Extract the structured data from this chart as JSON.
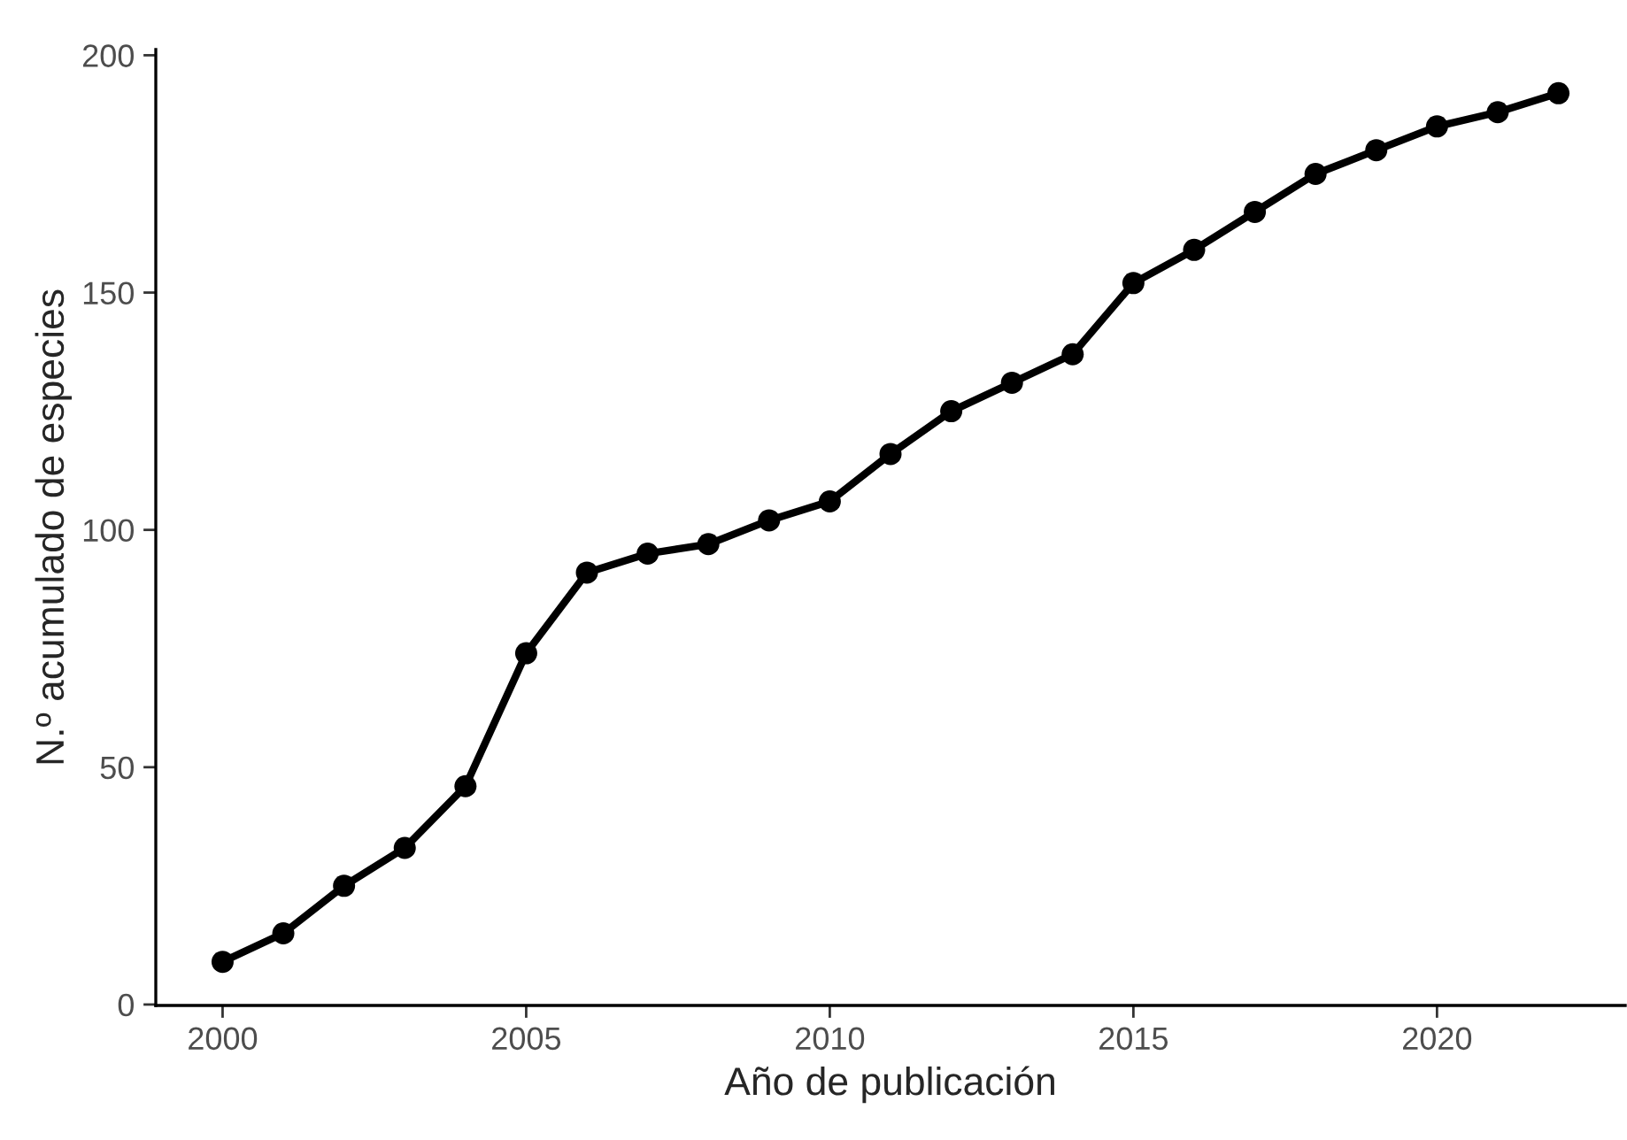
{
  "chart_data": {
    "type": "line",
    "xlabel": "Año de publicación",
    "ylabel": "N.º acumulado de especies",
    "x": [
      2000,
      2001,
      2002,
      2003,
      2004,
      2005,
      2006,
      2007,
      2008,
      2009,
      2010,
      2011,
      2012,
      2013,
      2014,
      2015,
      2016,
      2017,
      2018,
      2019,
      2020,
      2021,
      2022
    ],
    "series": [
      {
        "color": "#000000",
        "values": [
          9,
          15,
          25,
          33,
          46,
          74,
          91,
          95,
          97,
          102,
          106,
          116,
          125,
          131,
          137,
          152,
          159,
          167,
          175,
          180,
          185,
          188,
          192
        ]
      }
    ],
    "xlim": [
      1998.9,
      2023.1
    ],
    "xticks": [
      2000,
      2005,
      2010,
      2015,
      2020
    ],
    "ylim": [
      -0.2,
      201.2
    ],
    "yticks": [
      0,
      50,
      100,
      150,
      200
    ],
    "grid": false,
    "legend": false,
    "marker": "circle",
    "line_style": "solid"
  }
}
